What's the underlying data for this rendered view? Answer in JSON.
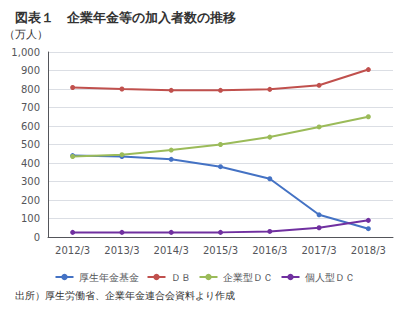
{
  "chart_data": {
    "type": "line",
    "title": "図表１　企業年金等の加入者数の推移",
    "ylabel": "（万人）",
    "annotations": [
      "出所）厚生労働省、企業年金連合会資料より作成"
    ],
    "categories": [
      "2012/3",
      "2013/3",
      "2014/3",
      "2015/3",
      "2016/3",
      "2017/3",
      "2018/3"
    ],
    "series": [
      {
        "name": "厚生年金基金",
        "color": "#4472c4",
        "marker": "circle",
        "values": [
          440,
          435,
          420,
          380,
          315,
          120,
          45
        ]
      },
      {
        "name": "ＤＢ",
        "color": "#c0504d",
        "marker": "circle",
        "values": [
          808,
          800,
          793,
          793,
          798,
          820,
          905
        ]
      },
      {
        "name": "企業型ＤＣ",
        "color": "#9bbb59",
        "marker": "circle",
        "values": [
          435,
          445,
          470,
          500,
          540,
          595,
          650
        ]
      },
      {
        "name": "個人型ＤＣ",
        "color": "#7030a0",
        "marker": "circle",
        "values": [
          25,
          25,
          25,
          25,
          30,
          50,
          90
        ]
      }
    ],
    "ylim": [
      0,
      1000
    ],
    "yticks": [
      0,
      100,
      200,
      300,
      400,
      500,
      600,
      700,
      800,
      900,
      {
        "value": 1000,
        "label": "1,000"
      }
    ],
    "grid": true,
    "legend": "bottom"
  }
}
